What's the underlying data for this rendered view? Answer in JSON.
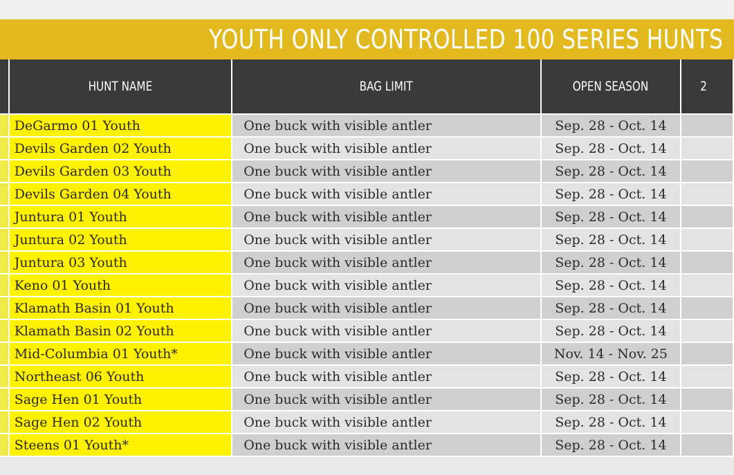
{
  "title": "YOUTH ONLY CONTROLLED 100 SERIES HUNTS",
  "columns": {
    "hunt_name": "HUNT NAME",
    "bag_limit": "BAG LIMIT",
    "open_season": "OPEN SEASON",
    "partial": "2"
  },
  "rows": [
    {
      "hunt_name": "DeGarmo 01 Youth",
      "bag_limit": "One buck with visible antler",
      "open_season": "Sep. 28 - Oct. 14"
    },
    {
      "hunt_name": "Devils Garden 02 Youth",
      "bag_limit": "One buck with visible antler",
      "open_season": "Sep. 28 - Oct. 14"
    },
    {
      "hunt_name": "Devils Garden 03 Youth",
      "bag_limit": "One buck with visible antler",
      "open_season": "Sep. 28 - Oct. 14"
    },
    {
      "hunt_name": "Devils Garden 04 Youth",
      "bag_limit": "One buck with visible antler",
      "open_season": "Sep. 28 - Oct. 14"
    },
    {
      "hunt_name": "Juntura 01 Youth",
      "bag_limit": "One buck with visible antler",
      "open_season": "Sep. 28 - Oct. 14"
    },
    {
      "hunt_name": "Juntura 02 Youth",
      "bag_limit": "One buck with visible antler",
      "open_season": "Sep. 28 - Oct. 14"
    },
    {
      "hunt_name": "Juntura 03 Youth",
      "bag_limit": "One buck with visible antler",
      "open_season": "Sep. 28 - Oct. 14"
    },
    {
      "hunt_name": "Keno 01 Youth",
      "bag_limit": "One buck with visible antler",
      "open_season": "Sep. 28 - Oct. 14"
    },
    {
      "hunt_name": "Klamath Basin 01 Youth",
      "bag_limit": "One buck with visible antler",
      "open_season": "Sep. 28 - Oct. 14"
    },
    {
      "hunt_name": "Klamath Basin 02 Youth",
      "bag_limit": "One buck with visible antler",
      "open_season": "Sep. 28 - Oct. 14"
    },
    {
      "hunt_name": "Mid-Columbia 01 Youth*",
      "bag_limit": "One buck with visible antler",
      "open_season": "Nov. 14 - Nov. 25"
    },
    {
      "hunt_name": "Northeast 06 Youth",
      "bag_limit": "One buck with visible antler",
      "open_season": "Sep. 28 - Oct. 14"
    },
    {
      "hunt_name": "Sage Hen 01 Youth",
      "bag_limit": "One buck with visible antler",
      "open_season": "Sep. 28 - Oct. 14"
    },
    {
      "hunt_name": "Sage Hen 02 Youth",
      "bag_limit": "One buck with visible antler",
      "open_season": "Sep. 28 - Oct. 14"
    },
    {
      "hunt_name": "Steens 01 Youth*",
      "bag_limit": "One buck with visible antler",
      "open_season": "Sep. 28 - Oct. 14"
    }
  ]
}
